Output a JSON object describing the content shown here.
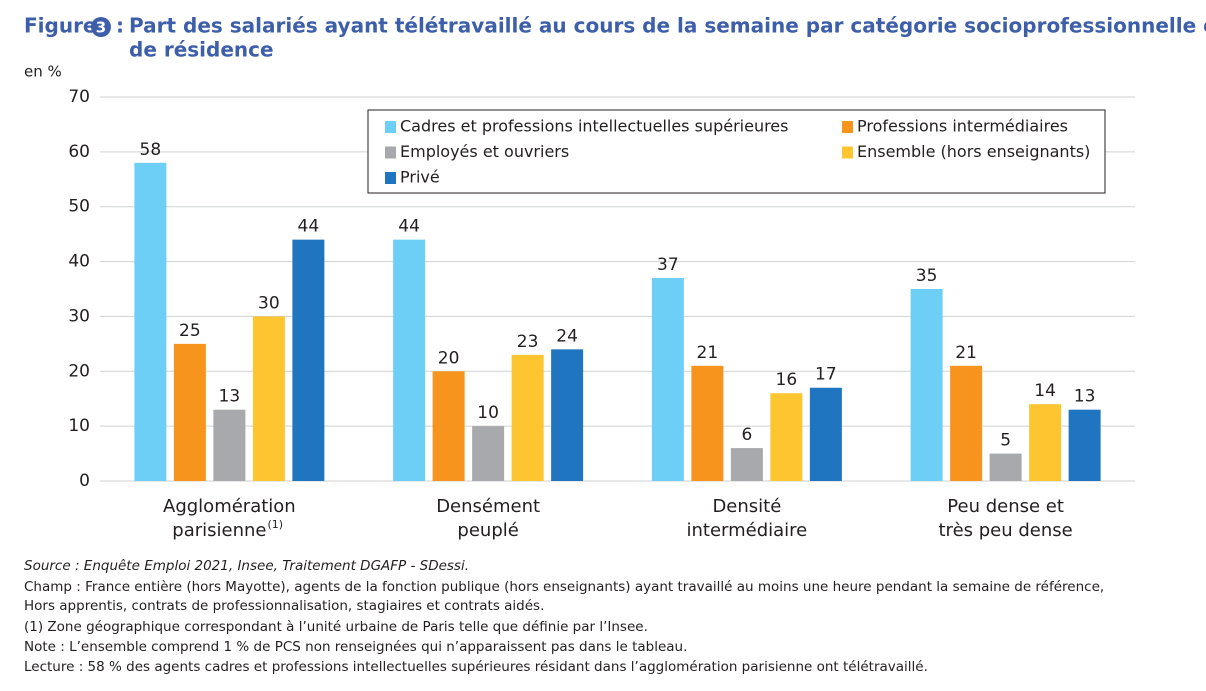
{
  "chart_data": {
    "type": "bar",
    "figure_label": "Figure",
    "figure_number": "3",
    "title_separator": ":",
    "title": [
      "Part des salariés ayant télétravaillé au cours de la semaine par catégorie socioprofessionnelle et lieu",
      "de résidence"
    ],
    "y_unit": "en %",
    "categories": [
      {
        "lines": [
          "Agglomération",
          "parisienne"
        ],
        "note": "(1)"
      },
      {
        "lines": [
          "Densément",
          "peuplé"
        ]
      },
      {
        "lines": [
          "Densité",
          "intermédiaire"
        ]
      },
      {
        "lines": [
          "Peu dense et",
          "très peu dense"
        ]
      }
    ],
    "series": [
      {
        "name": "Cadres et professions intellectuelles supérieures",
        "color": "#6dcff6",
        "values": [
          58,
          44,
          37,
          35
        ]
      },
      {
        "name": "Professions intermédiaires",
        "color": "#f7941d",
        "values": [
          25,
          20,
          21,
          21
        ]
      },
      {
        "name": "Employés et ouvriers",
        "color": "#a7a9ac",
        "values": [
          13,
          10,
          6,
          5
        ]
      },
      {
        "name": "Ensemble (hors enseignants)",
        "color": "#fdc530",
        "values": [
          30,
          23,
          16,
          14
        ]
      },
      {
        "name": "Privé",
        "color": "#1f75bf",
        "values": [
          44,
          24,
          17,
          13
        ]
      }
    ],
    "ylim": [
      0,
      70
    ],
    "yticks": [
      0,
      10,
      20,
      30,
      40,
      50,
      60,
      70
    ],
    "grid": true,
    "legend": "top-right",
    "notes": [
      "Source : Enquête Emploi 2021, Insee, Traitement DGAFP - SDessi.",
      "Champ : France entière (hors Mayotte), agents de la fonction publique (hors enseignants) ayant travaillé au moins une heure pendant la semaine de référence,",
      "Hors apprentis, contrats de professionnalisation, stagiaires et contrats aidés.",
      "(1) Zone géographique correspondant à l’unité urbaine de Paris telle que définie par l’Insee.",
      "Note : L’ensemble comprend 1 % de PCS non renseignées qui n’apparaissent pas dans le tableau.",
      "Lecture : 58 % des agents cadres et professions intellectuelles supérieures résidant dans l’agglomération parisienne ont télétravaillé."
    ]
  }
}
